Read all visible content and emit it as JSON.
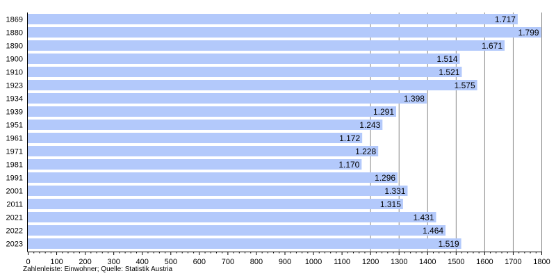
{
  "chart_data": {
    "type": "bar",
    "orientation": "horizontal",
    "categories": [
      "1869",
      "1880",
      "1890",
      "1900",
      "1910",
      "1923",
      "1934",
      "1939",
      "1951",
      "1961",
      "1971",
      "1981",
      "1991",
      "2001",
      "2011",
      "2021",
      "2022",
      "2023"
    ],
    "values": [
      1717,
      1799,
      1671,
      1514,
      1521,
      1575,
      1398,
      1291,
      1243,
      1172,
      1228,
      1170,
      1296,
      1331,
      1315,
      1431,
      1464,
      1519
    ],
    "data_labels": [
      "1.717",
      "1.799",
      "1.671",
      "1.514",
      "1.521",
      "1.575",
      "1.398",
      "1.291",
      "1.243",
      "1.172",
      "1.228",
      "1.170",
      "1.296",
      "1.331",
      "1.315",
      "1.431",
      "1.464",
      "1.519"
    ],
    "x_ticks": [
      "0",
      "100",
      "200",
      "300",
      "400",
      "500",
      "600",
      "700",
      "800",
      "900",
      "1000",
      "1100",
      "1200",
      "1300",
      "1400",
      "1500",
      "1600",
      "1700",
      "1800"
    ],
    "xlim": [
      0,
      1800
    ],
    "grid": "vertical lines from 1200 to 1800",
    "bar_color": "#b3c9fb",
    "footnote": "Zahlenleiste: Einwohner; Quelle: Statistik Austria"
  }
}
